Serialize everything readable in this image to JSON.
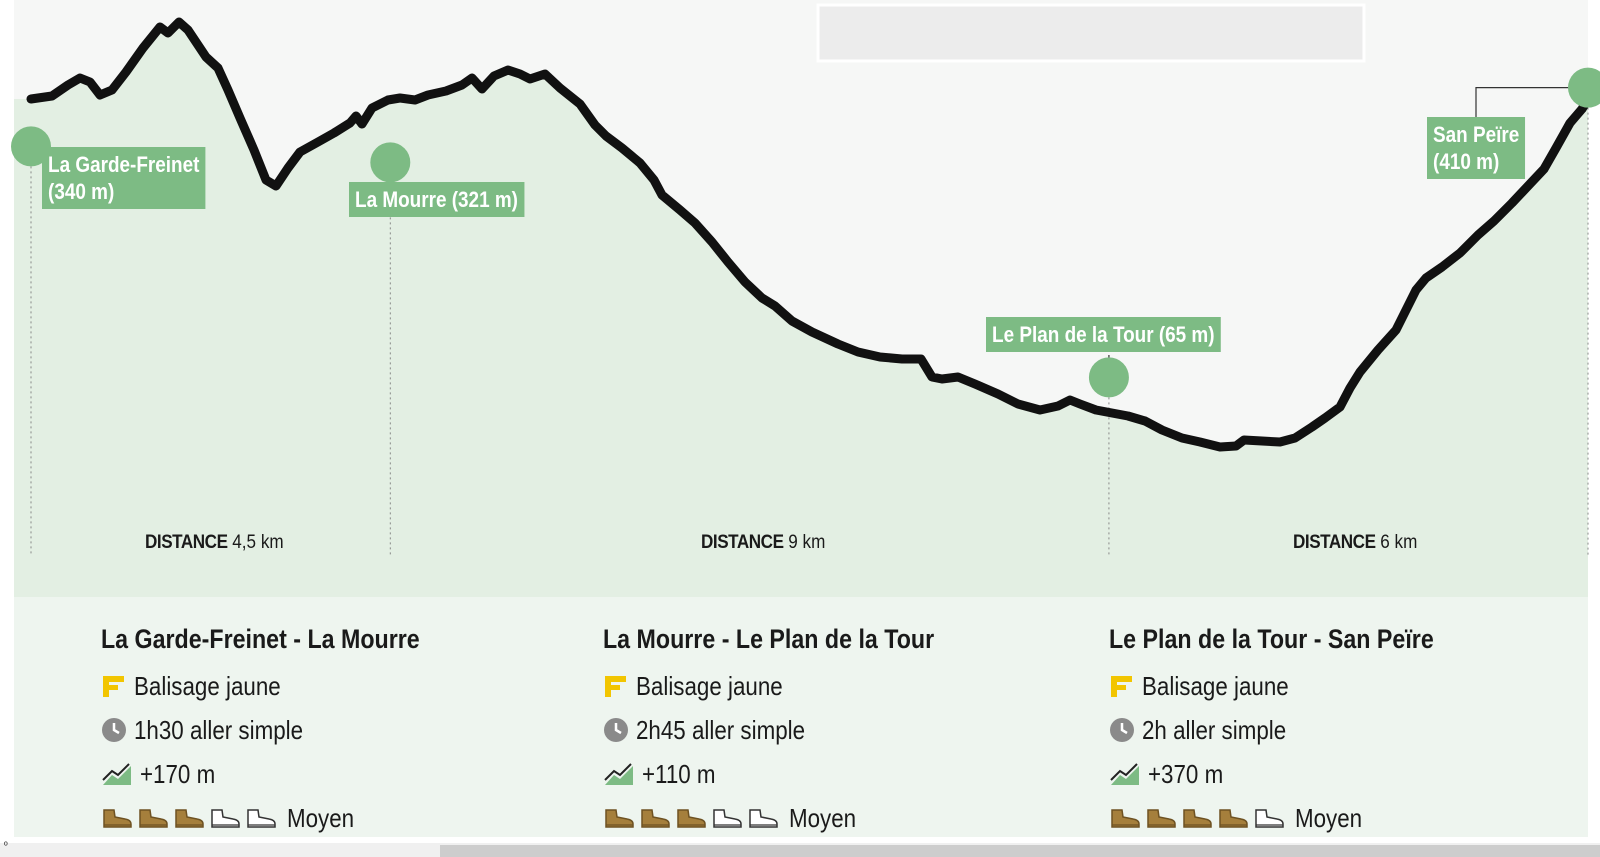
{
  "waypoints": [
    {
      "name": "La Garde-Freinet\n(340 m)",
      "km": 0,
      "alt": 340
    },
    {
      "name": "La Mourre (321 m)",
      "km": 4.5,
      "alt": 321
    },
    {
      "name": "Le Plan de la Tour (65 m)",
      "km": 13.5,
      "alt": 65
    },
    {
      "name": "San Peïre\n(410 m)",
      "km": 19.5,
      "alt": 410
    }
  ],
  "segments": [
    {
      "distance_label": "DISTANCE",
      "distance_value": "4,5 km",
      "title": "La Garde-Freinet - La Mourre",
      "marking": "Balisage jaune",
      "duration": "1h30 aller simple",
      "elevation_gain": "+170 m",
      "difficulty_filled": 3,
      "difficulty_total": 5,
      "difficulty_label": "Moyen"
    },
    {
      "distance_label": "DISTANCE",
      "distance_value": "9 km",
      "title": "La Mourre - Le Plan de la Tour",
      "marking": "Balisage jaune",
      "duration": "2h45 aller simple",
      "elevation_gain": "+110 m",
      "difficulty_filled": 3,
      "difficulty_total": 5,
      "difficulty_label": "Moyen"
    },
    {
      "distance_label": "DISTANCE",
      "distance_value": "6 km",
      "title": "Le Plan de la Tour - San Peïre",
      "marking": "Balisage jaune",
      "duration": "2h aller simple",
      "elevation_gain": "+370 m",
      "difficulty_filled": 4,
      "difficulty_total": 5,
      "difficulty_label": "Moyen"
    }
  ],
  "colors": {
    "profile_fill": "#e3efe3",
    "profile_line": "#111111",
    "waypoint": "#7dbb84",
    "marking_icon": "#f2c500",
    "boot_filled": "#a57f3c",
    "info_background": "#eef5ef"
  },
  "icons": {
    "marking": "yellow-marking-icon",
    "duration": "clock-icon",
    "elevation": "ascent-chart-icon",
    "difficulty": "hiking-boot-icon"
  },
  "scrollbar_mark": "º"
}
